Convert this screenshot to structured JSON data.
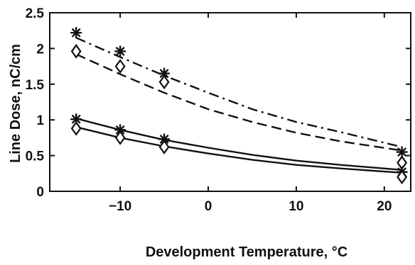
{
  "chart_data": {
    "type": "line",
    "xlabel": "Development Temperature, °C",
    "ylabel": "Line Dose, nC/cm",
    "xlim": [
      -18,
      23
    ],
    "ylim": [
      0,
      2.5
    ],
    "xticks": [
      -10,
      0,
      10,
      20
    ],
    "yticks": [
      0,
      0.5,
      1,
      1.5,
      2,
      2.5
    ],
    "xtick_labels": [
      "−10",
      "0",
      "10",
      "20"
    ],
    "ytick_labels": [
      "0",
      "0.5",
      "1",
      "1.5",
      "2",
      "2.5"
    ],
    "grid": false,
    "series": [
      {
        "kind": "markers",
        "marker": "asterisk",
        "x": [
          -15,
          -10,
          -5,
          22
        ],
        "y": [
          2.22,
          1.96,
          1.65,
          0.55
        ]
      },
      {
        "kind": "markers",
        "marker": "diamond",
        "x": [
          -15,
          -10,
          -5,
          22
        ],
        "y": [
          1.96,
          1.75,
          1.53,
          0.4
        ]
      },
      {
        "kind": "markers",
        "marker": "asterisk",
        "x": [
          -15,
          -10,
          -5,
          22
        ],
        "y": [
          1.01,
          0.86,
          0.73,
          0.27
        ]
      },
      {
        "kind": "markers",
        "marker": "diamond",
        "x": [
          -15,
          -10,
          -5,
          22
        ],
        "y": [
          0.88,
          0.75,
          0.62,
          0.2
        ]
      },
      {
        "kind": "curve",
        "style": "dashdot",
        "x": [
          -15,
          -10,
          -5,
          0,
          5,
          10,
          15,
          22
        ],
        "y": [
          2.15,
          1.88,
          1.62,
          1.38,
          1.15,
          0.97,
          0.83,
          0.62
        ]
      },
      {
        "kind": "curve",
        "style": "dashed",
        "x": [
          -15,
          -10,
          -5,
          0,
          5,
          10,
          15,
          22
        ],
        "y": [
          1.92,
          1.64,
          1.38,
          1.15,
          0.97,
          0.82,
          0.7,
          0.57
        ]
      },
      {
        "kind": "curve",
        "style": "solid",
        "x": [
          -15,
          -10,
          -5,
          0,
          5,
          10,
          15,
          22
        ],
        "y": [
          1.02,
          0.86,
          0.72,
          0.61,
          0.51,
          0.43,
          0.37,
          0.3
        ]
      },
      {
        "kind": "curve",
        "style": "solid",
        "x": [
          -15,
          -10,
          -5,
          0,
          5,
          10,
          15,
          22
        ],
        "y": [
          0.9,
          0.75,
          0.63,
          0.53,
          0.44,
          0.37,
          0.32,
          0.26
        ]
      }
    ]
  }
}
